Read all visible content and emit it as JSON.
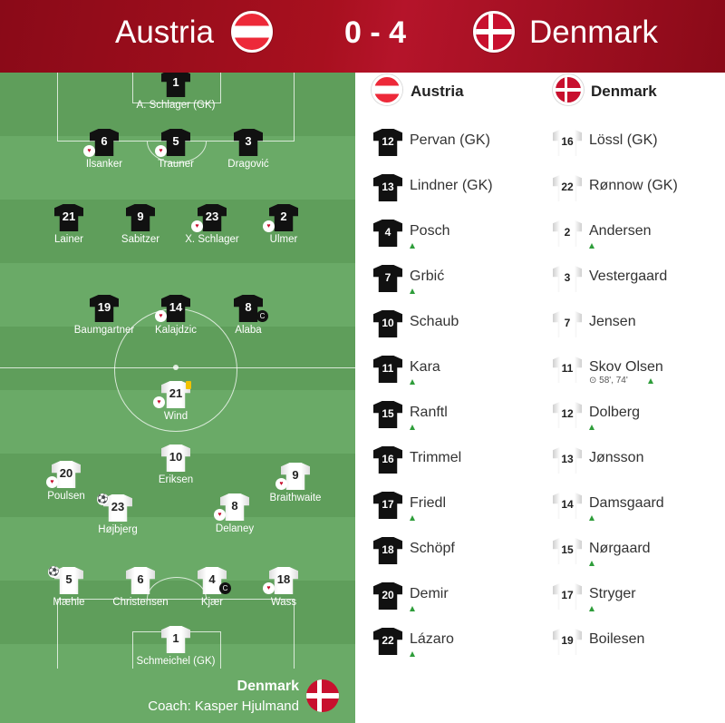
{
  "header": {
    "home_team": "Austria",
    "away_team": "Denmark",
    "score": "0 - 4"
  },
  "field": {
    "austria_players": [
      {
        "number": "1",
        "name": "A. Schlager (GK)"
      },
      {
        "number": "6",
        "name": "Ilsanker"
      },
      {
        "number": "5",
        "name": "Trauner"
      },
      {
        "number": "3",
        "name": "Dragović"
      },
      {
        "number": "21",
        "name": "Lainer"
      },
      {
        "number": "9",
        "name": "Sabitzer"
      },
      {
        "number": "23",
        "name": "X. Schlager"
      },
      {
        "number": "2",
        "name": "Ulmer"
      },
      {
        "number": "19",
        "name": "Baumgartner"
      },
      {
        "number": "14",
        "name": "Kalajdzic"
      },
      {
        "number": "8",
        "name": "Alaba"
      }
    ],
    "denmark_players": [
      {
        "number": "21",
        "name": "Wind"
      },
      {
        "number": "10",
        "name": "Eriksen"
      },
      {
        "number": "20",
        "name": "Poulsen"
      },
      {
        "number": "9",
        "name": "Braithwaite"
      },
      {
        "number": "23",
        "name": "Højbjerg"
      },
      {
        "number": "8",
        "name": "Delaney"
      },
      {
        "number": "5",
        "name": "Mæhle"
      },
      {
        "number": "6",
        "name": "Christensen"
      },
      {
        "number": "4",
        "name": "Kjær"
      },
      {
        "number": "18",
        "name": "Wass"
      },
      {
        "number": "1",
        "name": "Schmeichel (GK)"
      }
    ],
    "captain_mark": "C",
    "bottom_team": "Denmark",
    "coach": "Coach: Kasper Hjulmand"
  },
  "icons": {
    "substitution": "sub-out-heart-icon",
    "captain": "captain-icon",
    "goal": "ball-icon",
    "yellow_card": "yellow-card-icon",
    "sub_in": "green-up-arrow-icon"
  },
  "colors": {
    "header": "#a8101f",
    "pitch_dark": "#5f9e5b",
    "pitch_light": "#6aaa67",
    "sub_in_arrow": "#2e9d3a",
    "yellow_card": "#f2c200"
  },
  "bench": {
    "austria_label": "Austria",
    "denmark_label": "Denmark",
    "austria": [
      {
        "number": "12",
        "name": "Pervan (GK)",
        "sub_in": false
      },
      {
        "number": "13",
        "name": "Lindner (GK)",
        "sub_in": false
      },
      {
        "number": "4",
        "name": "Posch",
        "sub_in": true
      },
      {
        "number": "7",
        "name": "Grbić",
        "sub_in": true
      },
      {
        "number": "10",
        "name": "Schaub",
        "sub_in": false
      },
      {
        "number": "11",
        "name": "Kara",
        "sub_in": true
      },
      {
        "number": "15",
        "name": "Ranftl",
        "sub_in": true
      },
      {
        "number": "16",
        "name": "Trimmel",
        "sub_in": false
      },
      {
        "number": "17",
        "name": "Friedl",
        "sub_in": true
      },
      {
        "number": "18",
        "name": "Schöpf",
        "sub_in": false
      },
      {
        "number": "20",
        "name": "Demir",
        "sub_in": true
      },
      {
        "number": "22",
        "name": "Lázaro",
        "sub_in": true
      }
    ],
    "denmark": [
      {
        "number": "16",
        "name": "Lössl (GK)",
        "sub_in": false
      },
      {
        "number": "22",
        "name": "Rønnow (GK)",
        "sub_in": false
      },
      {
        "number": "2",
        "name": "Andersen",
        "sub_in": true
      },
      {
        "number": "3",
        "name": "Vestergaard",
        "sub_in": false
      },
      {
        "number": "7",
        "name": "Jensen",
        "sub_in": false
      },
      {
        "number": "11",
        "name": "Skov Olsen",
        "sub_in": true,
        "minutes": "⊙ 58', 74'"
      },
      {
        "number": "12",
        "name": "Dolberg",
        "sub_in": true
      },
      {
        "number": "13",
        "name": "Jønsson",
        "sub_in": false
      },
      {
        "number": "14",
        "name": "Damsgaard",
        "sub_in": true
      },
      {
        "number": "15",
        "name": "Nørgaard",
        "sub_in": true
      },
      {
        "number": "17",
        "name": "Stryger",
        "sub_in": true
      },
      {
        "number": "19",
        "name": "Boilesen",
        "sub_in": false
      }
    ]
  }
}
